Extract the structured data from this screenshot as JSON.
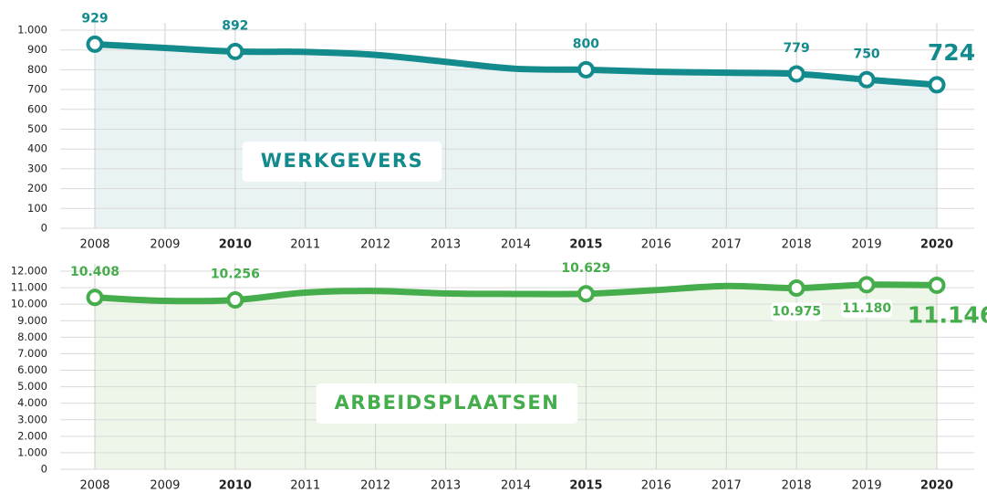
{
  "chart_data": [
    {
      "type": "line",
      "name": "WERKGEVERS",
      "color": "#138b8d",
      "fill": "#eaf3f3",
      "categories": [
        "2008",
        "2009",
        "2010",
        "2011",
        "2012",
        "2013",
        "2014",
        "2015",
        "2016",
        "2017",
        "2018",
        "2019",
        "2020"
      ],
      "bold": [
        false,
        false,
        true,
        false,
        false,
        false,
        false,
        true,
        false,
        false,
        false,
        false,
        true
      ],
      "values": [
        929,
        910,
        892,
        890,
        875,
        840,
        805,
        800,
        790,
        785,
        779,
        750,
        724
      ],
      "value_labels": [
        "929",
        null,
        "892",
        null,
        null,
        null,
        null,
        "800",
        null,
        null,
        "779",
        "750",
        "724"
      ],
      "label_positions": [
        "above",
        null,
        "above",
        null,
        null,
        null,
        null,
        "above",
        null,
        null,
        "above",
        "above",
        "above"
      ],
      "ylim": [
        0,
        1000
      ],
      "yticks": [
        0,
        100,
        200,
        300,
        400,
        500,
        600,
        700,
        800,
        900,
        {
          "value": 1000,
          "label": "1.000"
        }
      ],
      "grid": true
    },
    {
      "type": "line",
      "name": "ARBEIDSPLAATSEN",
      "color": "#46ad4c",
      "fill": "#eef6ea",
      "categories": [
        "2008",
        "2009",
        "2010",
        "2011",
        "2012",
        "2013",
        "2014",
        "2015",
        "2016",
        "2017",
        "2018",
        "2019",
        "2020"
      ],
      "bold": [
        false,
        false,
        true,
        false,
        false,
        false,
        false,
        true,
        false,
        false,
        false,
        false,
        true
      ],
      "values": [
        10408,
        10200,
        10256,
        10700,
        10800,
        10650,
        10620,
        10629,
        10850,
        11100,
        10975,
        11180,
        11146
      ],
      "value_labels": [
        "10.408",
        null,
        "10.256",
        null,
        null,
        null,
        null,
        "10.629",
        null,
        null,
        "10.975",
        "11.180",
        "11.146"
      ],
      "label_positions": [
        "above",
        null,
        "above",
        null,
        null,
        null,
        null,
        "above",
        null,
        null,
        "below",
        "below",
        "below"
      ],
      "ylim": [
        0,
        12000
      ],
      "yticks": [
        0,
        {
          "value": 1000,
          "label": "1.000"
        },
        {
          "value": 2000,
          "label": "2.000"
        },
        {
          "value": 3000,
          "label": "3.000"
        },
        {
          "value": 4000,
          "label": "4.000"
        },
        {
          "value": 5000,
          "label": "5.000"
        },
        {
          "value": 6000,
          "label": "6.000"
        },
        {
          "value": 7000,
          "label": "7.000"
        },
        {
          "value": 8000,
          "label": "8.000"
        },
        {
          "value": 9000,
          "label": "9.000"
        },
        {
          "value": 10000,
          "label": "10.000"
        },
        {
          "value": 11000,
          "label": "11.000"
        },
        {
          "value": 12000,
          "label": "12.000"
        }
      ],
      "grid": true
    }
  ]
}
